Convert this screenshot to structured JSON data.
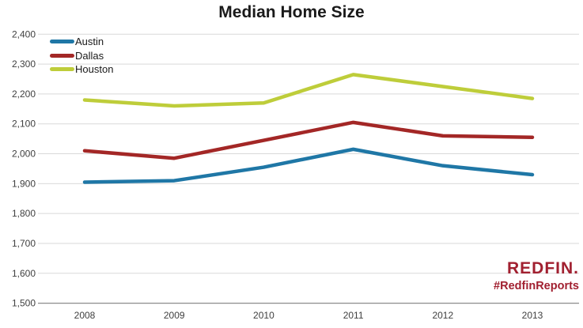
{
  "title": "Median Home Size",
  "branding": {
    "wordmark": "REDFIN.",
    "hashtag": "#RedfinReports",
    "color": "#A12030"
  },
  "chart_data": {
    "type": "line",
    "title": "Median Home Size",
    "x": [
      "2008",
      "2009",
      "2010",
      "2011",
      "2012",
      "2013"
    ],
    "series": [
      {
        "name": "Austin",
        "color": "#1F77A6",
        "values": [
          1905,
          1910,
          1955,
          2015,
          1960,
          1930
        ]
      },
      {
        "name": "Dallas",
        "color": "#A32726",
        "values": [
          2010,
          1985,
          2045,
          2105,
          2060,
          2055
        ]
      },
      {
        "name": "Houston",
        "color": "#BECD3A",
        "values": [
          2180,
          2160,
          2170,
          2265,
          2225,
          2185
        ]
      }
    ],
    "ylim": [
      1500,
      2400
    ],
    "yticks": [
      {
        "value": 2400,
        "label": "2,400"
      },
      {
        "value": 2300,
        "label": "2,300"
      },
      {
        "value": 2200,
        "label": "2,200"
      },
      {
        "value": 2100,
        "label": "2,100"
      },
      {
        "value": 2000,
        "label": "2,000"
      },
      {
        "value": 1900,
        "label": "1,900"
      },
      {
        "value": 1800,
        "label": "1,800"
      },
      {
        "value": 1700,
        "label": "1,700"
      },
      {
        "value": 1600,
        "label": "1,600"
      },
      {
        "value": 1500,
        "label": "1,500"
      }
    ],
    "grid": true,
    "legend_position": "top-left",
    "gridline_color": "#D9D9D9",
    "axis_color": "#8C8C8C",
    "tick_label_color": "#404040",
    "line_width": 4.5
  }
}
